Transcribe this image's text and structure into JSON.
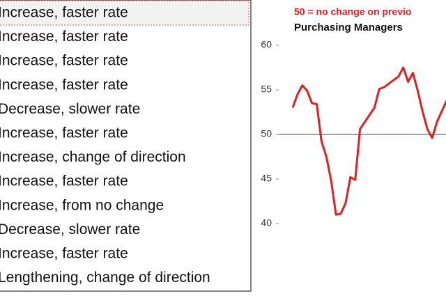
{
  "list": {
    "items": [
      "Increase, faster rate",
      "Increase, faster rate",
      "Increase, faster rate",
      "Increase, faster rate",
      "Decrease, slower rate",
      "Increase, faster rate",
      "Increase, change of direction",
      "Increase, faster rate",
      "Increase, from no change",
      "Decrease, slower rate",
      "Increase, faster rate",
      "Lengthening, change of direction"
    ]
  },
  "chart_data": {
    "type": "line",
    "title": "Purchasing Managers",
    "subtitle": "50 =  no change on previo",
    "categories": [
      null,
      null,
      null,
      null,
      null,
      null,
      null,
      null,
      null,
      null,
      null,
      null,
      null,
      null,
      null,
      null,
      null,
      null,
      null,
      null,
      null,
      null,
      null,
      null,
      null,
      null,
      null,
      null,
      null,
      null,
      null,
      null,
      null
    ],
    "series": [
      {
        "color": "#e02020",
        "values": [
          53.0,
          54.5,
          55.5,
          54.9,
          53.5,
          53.4,
          49.2,
          47.5,
          44.8,
          41.0,
          41.1,
          42.3,
          45.2,
          44.9,
          50.6,
          51.4,
          52.2,
          53.0,
          55.1,
          55.3,
          55.7,
          56.1,
          56.5,
          57.5,
          55.9,
          56.9,
          54.9,
          52.6,
          50.6,
          49.6,
          51.4,
          52.6,
          53.8
        ]
      }
    ],
    "ylim": [
      40,
      60
    ],
    "yticks": [
      40,
      45,
      50,
      55,
      60
    ],
    "reference_line": 50
  }
}
